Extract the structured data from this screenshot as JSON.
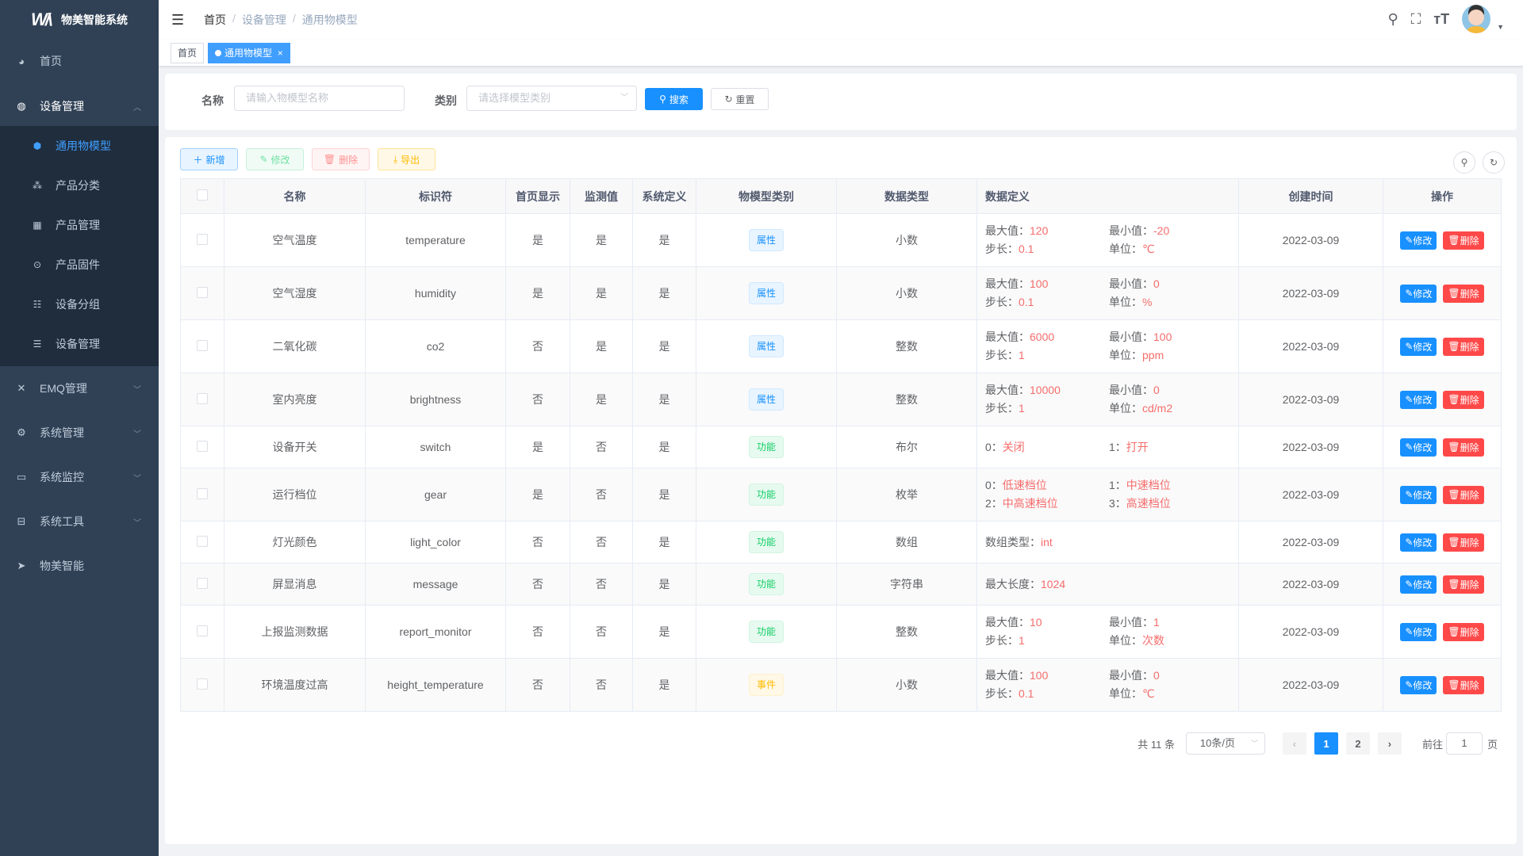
{
  "app": {
    "title": "物美智能系统",
    "logo": "WM"
  },
  "colors": {
    "sidebar": "#304156",
    "submenu": "#1f2d3d",
    "accent": "#409eff",
    "danger": "#ff4949",
    "value_red": "#f56c6c"
  },
  "sidebar": {
    "items": [
      {
        "label": "首页",
        "icon": "dashboard-icon"
      },
      {
        "label": "设备管理",
        "icon": "device-icon",
        "expanded": true,
        "children": [
          {
            "label": "通用物模型",
            "icon": "cube-icon",
            "active": true
          },
          {
            "label": "产品分类",
            "icon": "tree-icon"
          },
          {
            "label": "产品管理",
            "icon": "grid-icon"
          },
          {
            "label": "产品固件",
            "icon": "chip-icon"
          },
          {
            "label": "设备分组",
            "icon": "list-icon"
          },
          {
            "label": "设备管理",
            "icon": "server-icon"
          }
        ]
      },
      {
        "label": "EMQ管理",
        "icon": "network-icon"
      },
      {
        "label": "系统管理",
        "icon": "gear-icon"
      },
      {
        "label": "系统监控",
        "icon": "monitor-icon"
      },
      {
        "label": "系统工具",
        "icon": "toolbox-icon"
      },
      {
        "label": "物美智能",
        "icon": "paper-plane-icon"
      }
    ]
  },
  "breadcrumb": [
    "首页",
    "设备管理",
    "通用物模型"
  ],
  "tags": [
    {
      "label": "首页"
    },
    {
      "label": "通用物模型",
      "active": true,
      "close": "×"
    }
  ],
  "search": {
    "name_label": "名称",
    "name_placeholder": "请输入物模型名称",
    "type_label": "类别",
    "type_placeholder": "请选择模型类别",
    "search_button": "搜索",
    "reset_button": "重置"
  },
  "toolbar": {
    "add": "新增",
    "edit": "修改",
    "delete": "删除",
    "export": "导出"
  },
  "table": {
    "headers": [
      "名称",
      "标识符",
      "首页显示",
      "监测值",
      "系统定义",
      "物模型类别",
      "数据类型",
      "数据定义",
      "创建时间",
      "操作"
    ],
    "actions": {
      "edit": "修改",
      "delete": "删除"
    },
    "rows": [
      {
        "name": "空气温度",
        "identifier": "temperature",
        "home": "是",
        "monitor": "是",
        "system": "是",
        "type": "属性",
        "datatype": "小数",
        "def": [
          [
            "最大值：",
            "120"
          ],
          [
            "最小值：",
            "-20"
          ],
          [
            "步长：",
            "0.1"
          ],
          [
            "单位：",
            "℃"
          ]
        ],
        "created": "2022-03-09"
      },
      {
        "name": "空气湿度",
        "identifier": "humidity",
        "home": "是",
        "monitor": "是",
        "system": "是",
        "type": "属性",
        "datatype": "小数",
        "def": [
          [
            "最大值：",
            "100"
          ],
          [
            "最小值：",
            "0"
          ],
          [
            "步长：",
            "0.1"
          ],
          [
            "单位：",
            "%"
          ]
        ],
        "created": "2022-03-09"
      },
      {
        "name": "二氧化碳",
        "identifier": "co2",
        "home": "否",
        "monitor": "是",
        "system": "是",
        "type": "属性",
        "datatype": "整数",
        "def": [
          [
            "最大值：",
            "6000"
          ],
          [
            "最小值：",
            "100"
          ],
          [
            "步长：",
            "1"
          ],
          [
            "单位：",
            "ppm"
          ]
        ],
        "created": "2022-03-09"
      },
      {
        "name": "室内亮度",
        "identifier": "brightness",
        "home": "否",
        "monitor": "是",
        "system": "是",
        "type": "属性",
        "datatype": "整数",
        "def": [
          [
            "最大值：",
            "10000"
          ],
          [
            "最小值：",
            "0"
          ],
          [
            "步长：",
            "1"
          ],
          [
            "单位：",
            "cd/m2"
          ]
        ],
        "created": "2022-03-09"
      },
      {
        "name": "设备开关",
        "identifier": "switch",
        "home": "是",
        "monitor": "否",
        "system": "是",
        "type": "功能",
        "datatype": "布尔",
        "def": [
          [
            "0：",
            "关闭"
          ],
          [
            "1：",
            "打开"
          ]
        ],
        "created": "2022-03-09"
      },
      {
        "name": "运行档位",
        "identifier": "gear",
        "home": "是",
        "monitor": "否",
        "system": "是",
        "type": "功能",
        "datatype": "枚举",
        "def": [
          [
            "0：",
            "低速档位"
          ],
          [
            "1：",
            "中速档位"
          ],
          [
            "2：",
            "中高速档位"
          ],
          [
            "3：",
            "高速档位"
          ]
        ],
        "created": "2022-03-09"
      },
      {
        "name": "灯光颜色",
        "identifier": "light_color",
        "home": "否",
        "monitor": "否",
        "system": "是",
        "type": "功能",
        "datatype": "数组",
        "def": [
          [
            "数组类型：",
            "int"
          ]
        ],
        "created": "2022-03-09"
      },
      {
        "name": "屏显消息",
        "identifier": "message",
        "home": "否",
        "monitor": "否",
        "system": "是",
        "type": "功能",
        "datatype": "字符串",
        "def": [
          [
            "最大长度：",
            "1024"
          ]
        ],
        "created": "2022-03-09"
      },
      {
        "name": "上报监测数据",
        "identifier": "report_monitor",
        "home": "否",
        "monitor": "否",
        "system": "是",
        "type": "功能",
        "datatype": "整数",
        "def": [
          [
            "最大值：",
            "10"
          ],
          [
            "最小值：",
            "1"
          ],
          [
            "步长：",
            "1"
          ],
          [
            "单位：",
            "次数"
          ]
        ],
        "created": "2022-03-09"
      },
      {
        "name": "环境温度过高",
        "identifier": "height_temperature",
        "home": "否",
        "monitor": "否",
        "system": "是",
        "type": "事件",
        "datatype": "小数",
        "def": [
          [
            "最大值：",
            "100"
          ],
          [
            "最小值：",
            "0"
          ],
          [
            "步长：",
            "0.1"
          ],
          [
            "单位：",
            "℃"
          ]
        ],
        "created": "2022-03-09"
      }
    ]
  },
  "pagination": {
    "total": "共 11 条",
    "page_size": "10条/页",
    "pages": [
      "1",
      "2"
    ],
    "current": "1",
    "goto_label": "前往",
    "goto_value": "1",
    "goto_suffix": "页"
  }
}
